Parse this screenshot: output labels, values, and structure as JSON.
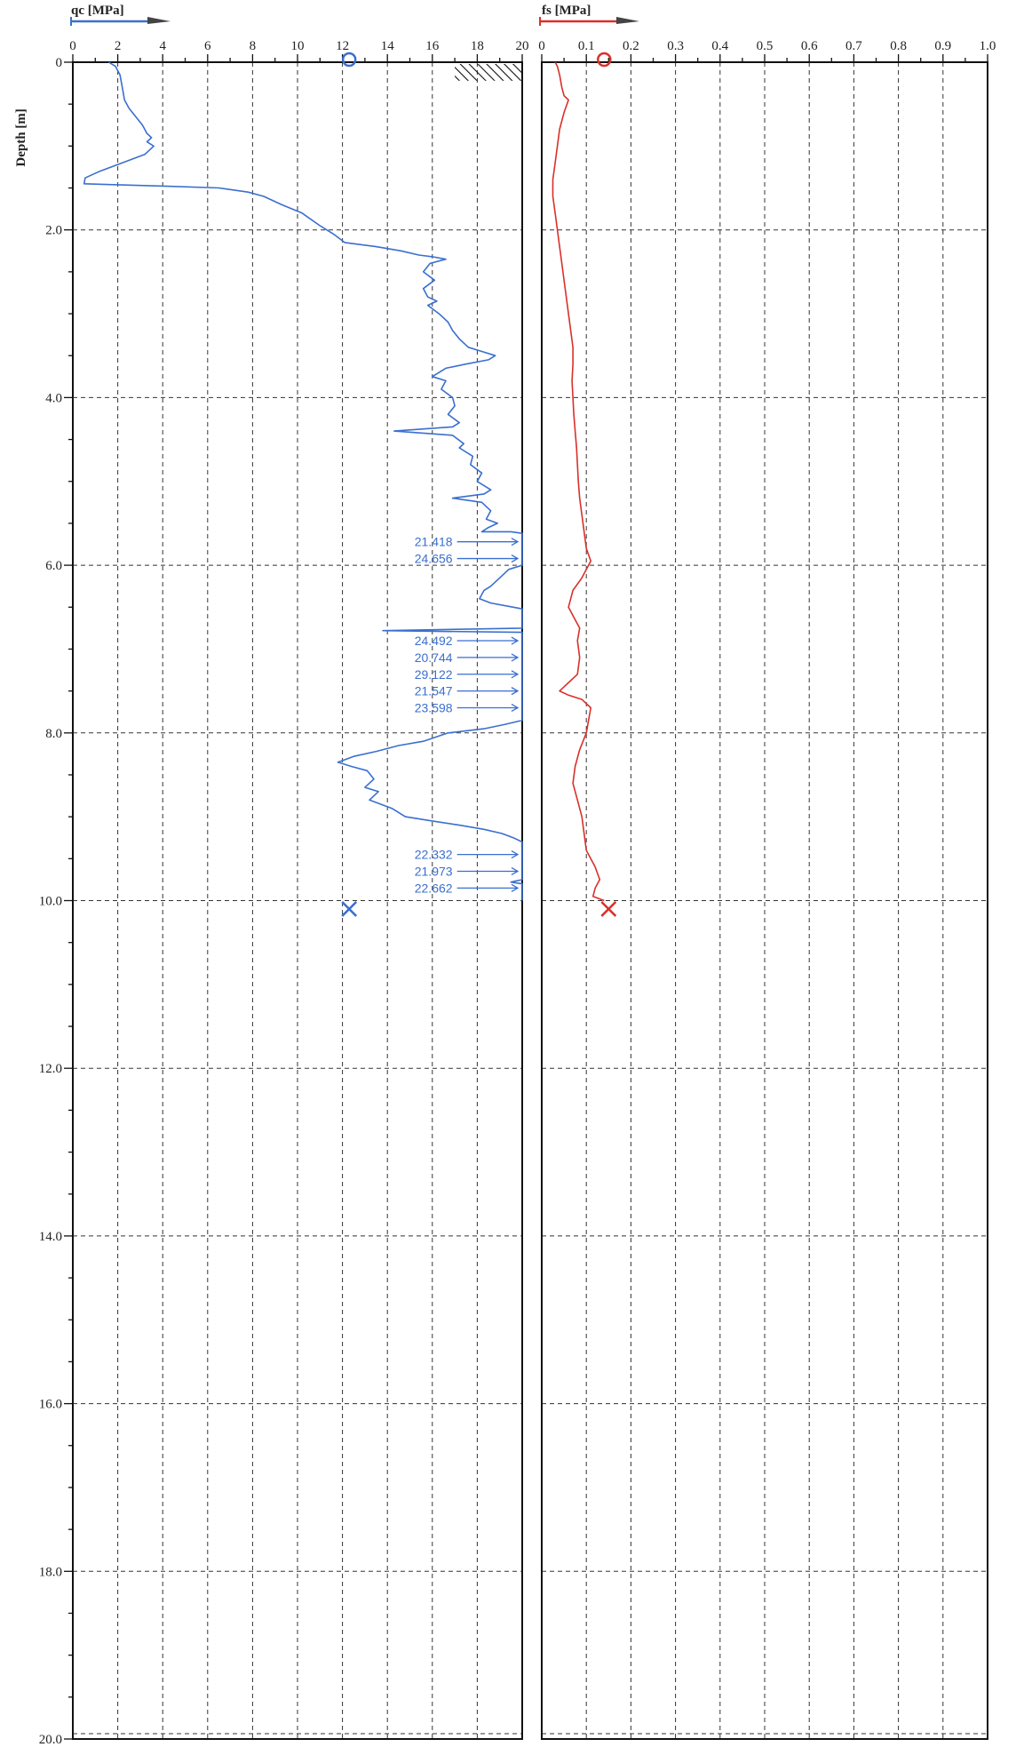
{
  "chart_data": [
    {
      "type": "line",
      "title": "",
      "xlabel": "qc [MPa]",
      "ylabel": "Depth [m]",
      "xlim": [
        0,
        20
      ],
      "ylim": [
        0,
        20
      ],
      "y_reversed": true,
      "grid": true,
      "x_ticks": [
        "0",
        "2",
        "4",
        "6",
        "8",
        "10",
        "12",
        "14",
        "16",
        "18",
        "20"
      ],
      "y_ticks": [
        "0",
        "2.0",
        "4.0",
        "6.0",
        "8.0",
        "10.0",
        "12.0",
        "14.0",
        "16.0",
        "18.0",
        "20.0"
      ],
      "line_color": "#3a6fd0",
      "series": [
        {
          "name": "",
          "points": [
            [
              1.6,
              0.0
            ],
            [
              1.9,
              0.05
            ],
            [
              2.1,
              0.15
            ],
            [
              2.2,
              0.3
            ],
            [
              2.3,
              0.45
            ],
            [
              2.5,
              0.55
            ],
            [
              2.8,
              0.65
            ],
            [
              3.1,
              0.75
            ],
            [
              3.3,
              0.85
            ],
            [
              3.5,
              0.9
            ],
            [
              3.3,
              0.95
            ],
            [
              3.6,
              1.0
            ],
            [
              3.2,
              1.1
            ],
            [
              2.2,
              1.2
            ],
            [
              1.2,
              1.3
            ],
            [
              0.55,
              1.38
            ],
            [
              0.5,
              1.45
            ],
            [
              1.8,
              1.46
            ],
            [
              4.2,
              1.48
            ],
            [
              6.5,
              1.5
            ],
            [
              7.8,
              1.55
            ],
            [
              8.5,
              1.6
            ],
            [
              9.3,
              1.7
            ],
            [
              10.2,
              1.8
            ],
            [
              11.0,
              1.95
            ],
            [
              11.6,
              2.05
            ],
            [
              12.1,
              2.15
            ],
            [
              13.5,
              2.2
            ],
            [
              14.6,
              2.25
            ],
            [
              15.4,
              2.3
            ],
            [
              16.0,
              2.32
            ],
            [
              16.6,
              2.35
            ],
            [
              15.9,
              2.4
            ],
            [
              15.6,
              2.5
            ],
            [
              16.1,
              2.6
            ],
            [
              15.6,
              2.7
            ],
            [
              15.8,
              2.8
            ],
            [
              16.2,
              2.85
            ],
            [
              15.8,
              2.9
            ],
            [
              16.3,
              3.0
            ],
            [
              16.7,
              3.1
            ],
            [
              16.9,
              3.2
            ],
            [
              17.2,
              3.3
            ],
            [
              17.6,
              3.4
            ],
            [
              18.2,
              3.45
            ],
            [
              18.8,
              3.5
            ],
            [
              18.5,
              3.55
            ],
            [
              17.5,
              3.6
            ],
            [
              16.6,
              3.65
            ],
            [
              16.0,
              3.75
            ],
            [
              16.6,
              3.8
            ],
            [
              16.4,
              3.9
            ],
            [
              16.9,
              4.0
            ],
            [
              17.0,
              4.1
            ],
            [
              16.7,
              4.2
            ],
            [
              17.2,
              4.3
            ],
            [
              16.9,
              4.35
            ],
            [
              14.3,
              4.4
            ],
            [
              16.9,
              4.45
            ],
            [
              17.4,
              4.55
            ],
            [
              17.2,
              4.6
            ],
            [
              17.8,
              4.7
            ],
            [
              17.7,
              4.8
            ],
            [
              18.2,
              4.9
            ],
            [
              18.0,
              5.0
            ],
            [
              18.6,
              5.1
            ],
            [
              18.3,
              5.15
            ],
            [
              16.9,
              5.2
            ],
            [
              18.2,
              5.25
            ],
            [
              18.6,
              5.35
            ],
            [
              18.4,
              5.45
            ],
            [
              18.9,
              5.5
            ],
            [
              18.5,
              5.55
            ],
            [
              18.2,
              5.6
            ],
            [
              19.5,
              5.6
            ],
            [
              20.0,
              5.62
            ],
            [
              20.0,
              6.0
            ],
            [
              19.4,
              6.05
            ],
            [
              19.0,
              6.15
            ],
            [
              18.6,
              6.25
            ],
            [
              18.3,
              6.3
            ],
            [
              18.1,
              6.4
            ],
            [
              18.6,
              6.45
            ],
            [
              19.6,
              6.5
            ],
            [
              20.0,
              6.52
            ],
            [
              20.0,
              6.75
            ],
            [
              13.8,
              6.78
            ],
            [
              20.0,
              6.8
            ],
            [
              20.0,
              7.85
            ],
            [
              19.2,
              7.9
            ],
            [
              18.3,
              7.95
            ],
            [
              16.7,
              8.0
            ],
            [
              15.6,
              8.1
            ],
            [
              14.5,
              8.15
            ],
            [
              13.5,
              8.22
            ],
            [
              12.5,
              8.28
            ],
            [
              11.8,
              8.35
            ],
            [
              12.4,
              8.4
            ],
            [
              13.1,
              8.45
            ],
            [
              13.4,
              8.55
            ],
            [
              13.0,
              8.65
            ],
            [
              13.6,
              8.7
            ],
            [
              13.2,
              8.8
            ],
            [
              14.2,
              8.9
            ],
            [
              14.8,
              9.0
            ],
            [
              16.0,
              9.05
            ],
            [
              17.2,
              9.1
            ],
            [
              18.3,
              9.15
            ],
            [
              19.1,
              9.2
            ],
            [
              19.6,
              9.25
            ],
            [
              20.0,
              9.3
            ],
            [
              20.0,
              9.75
            ],
            [
              19.5,
              9.78
            ],
            [
              20.0,
              9.8
            ],
            [
              20.0,
              10.0
            ]
          ]
        }
      ],
      "annotations": [
        {
          "text": "21.418",
          "y": 5.72
        },
        {
          "text": "24.656",
          "y": 5.92
        },
        {
          "text": "24.492",
          "y": 6.9
        },
        {
          "text": "20.744",
          "y": 7.1
        },
        {
          "text": "29.122",
          "y": 7.3
        },
        {
          "text": "21.547",
          "y": 7.5
        },
        {
          "text": "23.598",
          "y": 7.7
        },
        {
          "text": "22.332",
          "y": 9.45
        },
        {
          "text": "21.973",
          "y": 9.65
        },
        {
          "text": "22.662",
          "y": 9.85
        }
      ],
      "markers": [
        {
          "shape": "circle",
          "x": 12.3,
          "y": 0.0
        },
        {
          "shape": "cross",
          "x": 12.3,
          "y": 10.1
        }
      ],
      "hatch_block": {
        "x_from": 17.0,
        "x_to": 20.0,
        "y_from": 0.0,
        "y_to": 0.2
      }
    },
    {
      "type": "line",
      "title": "",
      "xlabel": "fs [MPa]",
      "ylabel": "",
      "xlim": [
        0,
        1.0
      ],
      "ylim": [
        0,
        20
      ],
      "y_reversed": true,
      "grid": true,
      "x_ticks": [
        "0",
        "0.1",
        "0.2",
        "0.3",
        "0.4",
        "0.5",
        "0.6",
        "0.7",
        "0.8",
        "0.9",
        "1.0"
      ],
      "line_color": "#d9302a",
      "series": [
        {
          "name": "",
          "points": [
            [
              0.03,
              0.0
            ],
            [
              0.035,
              0.05
            ],
            [
              0.04,
              0.15
            ],
            [
              0.045,
              0.3
            ],
            [
              0.05,
              0.4
            ],
            [
              0.06,
              0.45
            ],
            [
              0.05,
              0.6
            ],
            [
              0.04,
              0.8
            ],
            [
              0.035,
              1.0
            ],
            [
              0.03,
              1.2
            ],
            [
              0.025,
              1.4
            ],
            [
              0.025,
              1.6
            ],
            [
              0.03,
              1.8
            ],
            [
              0.035,
              2.0
            ],
            [
              0.04,
              2.2
            ],
            [
              0.045,
              2.4
            ],
            [
              0.05,
              2.6
            ],
            [
              0.055,
              2.8
            ],
            [
              0.06,
              3.0
            ],
            [
              0.065,
              3.2
            ],
            [
              0.07,
              3.4
            ],
            [
              0.07,
              3.6
            ],
            [
              0.068,
              3.8
            ],
            [
              0.07,
              4.0
            ],
            [
              0.072,
              4.2
            ],
            [
              0.075,
              4.4
            ],
            [
              0.078,
              4.6
            ],
            [
              0.08,
              4.8
            ],
            [
              0.082,
              5.0
            ],
            [
              0.085,
              5.2
            ],
            [
              0.09,
              5.4
            ],
            [
              0.095,
              5.6
            ],
            [
              0.1,
              5.8
            ],
            [
              0.11,
              5.95
            ],
            [
              0.1,
              6.05
            ],
            [
              0.09,
              6.15
            ],
            [
              0.07,
              6.3
            ],
            [
              0.06,
              6.5
            ],
            [
              0.07,
              6.6
            ],
            [
              0.085,
              6.75
            ],
            [
              0.08,
              6.9
            ],
            [
              0.085,
              7.1
            ],
            [
              0.08,
              7.3
            ],
            [
              0.05,
              7.45
            ],
            [
              0.04,
              7.5
            ],
            [
              0.06,
              7.55
            ],
            [
              0.09,
              7.6
            ],
            [
              0.11,
              7.7
            ],
            [
              0.105,
              7.85
            ],
            [
              0.1,
              8.0
            ],
            [
              0.085,
              8.2
            ],
            [
              0.075,
              8.4
            ],
            [
              0.07,
              8.6
            ],
            [
              0.08,
              8.8
            ],
            [
              0.09,
              9.0
            ],
            [
              0.095,
              9.2
            ],
            [
              0.1,
              9.4
            ],
            [
              0.12,
              9.6
            ],
            [
              0.13,
              9.75
            ],
            [
              0.12,
              9.85
            ],
            [
              0.115,
              9.95
            ],
            [
              0.14,
              10.0
            ]
          ]
        }
      ],
      "markers": [
        {
          "shape": "circle",
          "x": 0.14,
          "y": 0.0
        },
        {
          "shape": "cross",
          "x": 0.15,
          "y": 10.1
        }
      ]
    }
  ]
}
